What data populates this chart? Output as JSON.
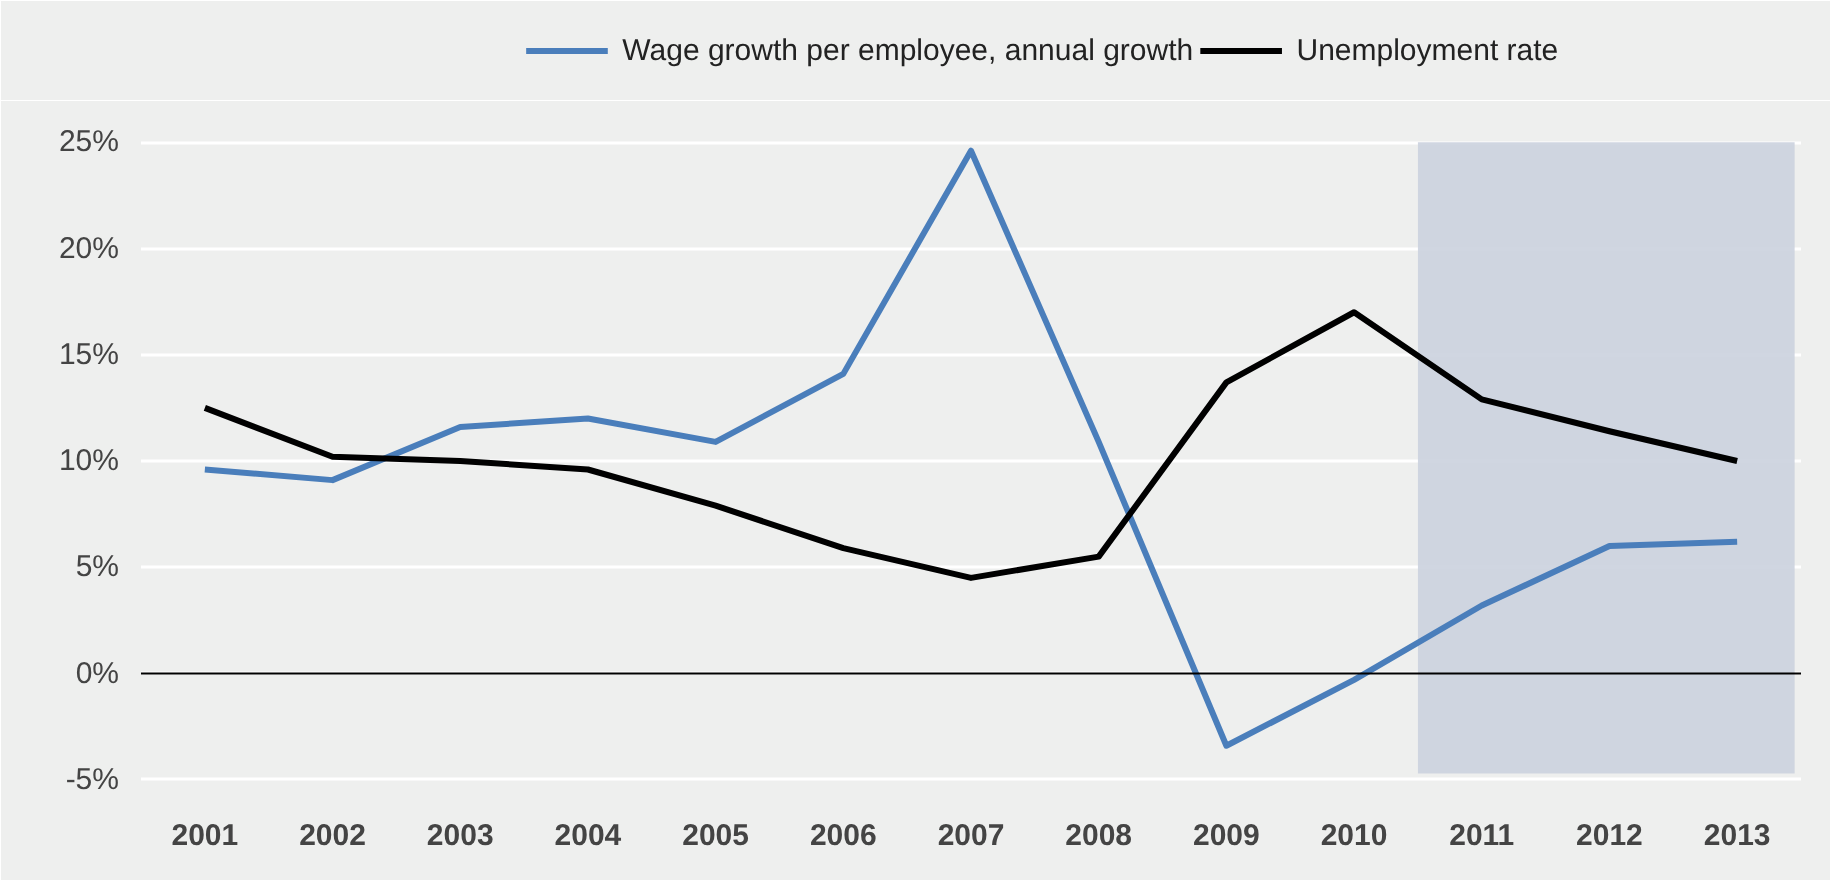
{
  "chart_data": {
    "type": "line",
    "x": [
      2001,
      2002,
      2003,
      2004,
      2005,
      2006,
      2007,
      2008,
      2009,
      2010,
      2011,
      2012,
      2013
    ],
    "xlim": [
      2000.5,
      2013.5
    ],
    "xticks": [
      2001,
      2002,
      2003,
      2004,
      2005,
      2006,
      2007,
      2008,
      2009,
      2010,
      2011,
      2012,
      2013
    ],
    "ylim": [
      -6,
      26
    ],
    "yticks": [
      {
        "value": -5,
        "label": "-5%"
      },
      {
        "value": 0,
        "label": "0%"
      },
      {
        "value": 5,
        "label": "5%"
      },
      {
        "value": 10,
        "label": "10%"
      },
      {
        "value": 15,
        "label": "15%"
      },
      {
        "value": 20,
        "label": "20%"
      },
      {
        "value": 25,
        "label": "25%"
      }
    ],
    "series": [
      {
        "name": "Wage growth per employee, annual growth",
        "color": "#4a7ebb",
        "values": [
          9.6,
          9.1,
          11.6,
          12.0,
          10.9,
          14.1,
          24.6,
          10.9,
          -3.4,
          -0.3,
          3.2,
          6.0,
          6.2
        ]
      },
      {
        "name": "Unemployment rate",
        "color": "#000000",
        "values": [
          12.5,
          10.2,
          10.0,
          9.6,
          7.9,
          5.9,
          4.5,
          5.5,
          13.7,
          17.0,
          12.9,
          11.4,
          10.0
        ]
      }
    ],
    "bands": [
      {
        "axis": "x",
        "from": 2010.5,
        "to": 2013.45,
        "color": "#cbd1de"
      }
    ],
    "ref_lines": [
      {
        "axis": "y",
        "value": 0,
        "color": "#000000"
      }
    ],
    "grid": "y",
    "legend": "top",
    "line_style": "solid"
  }
}
